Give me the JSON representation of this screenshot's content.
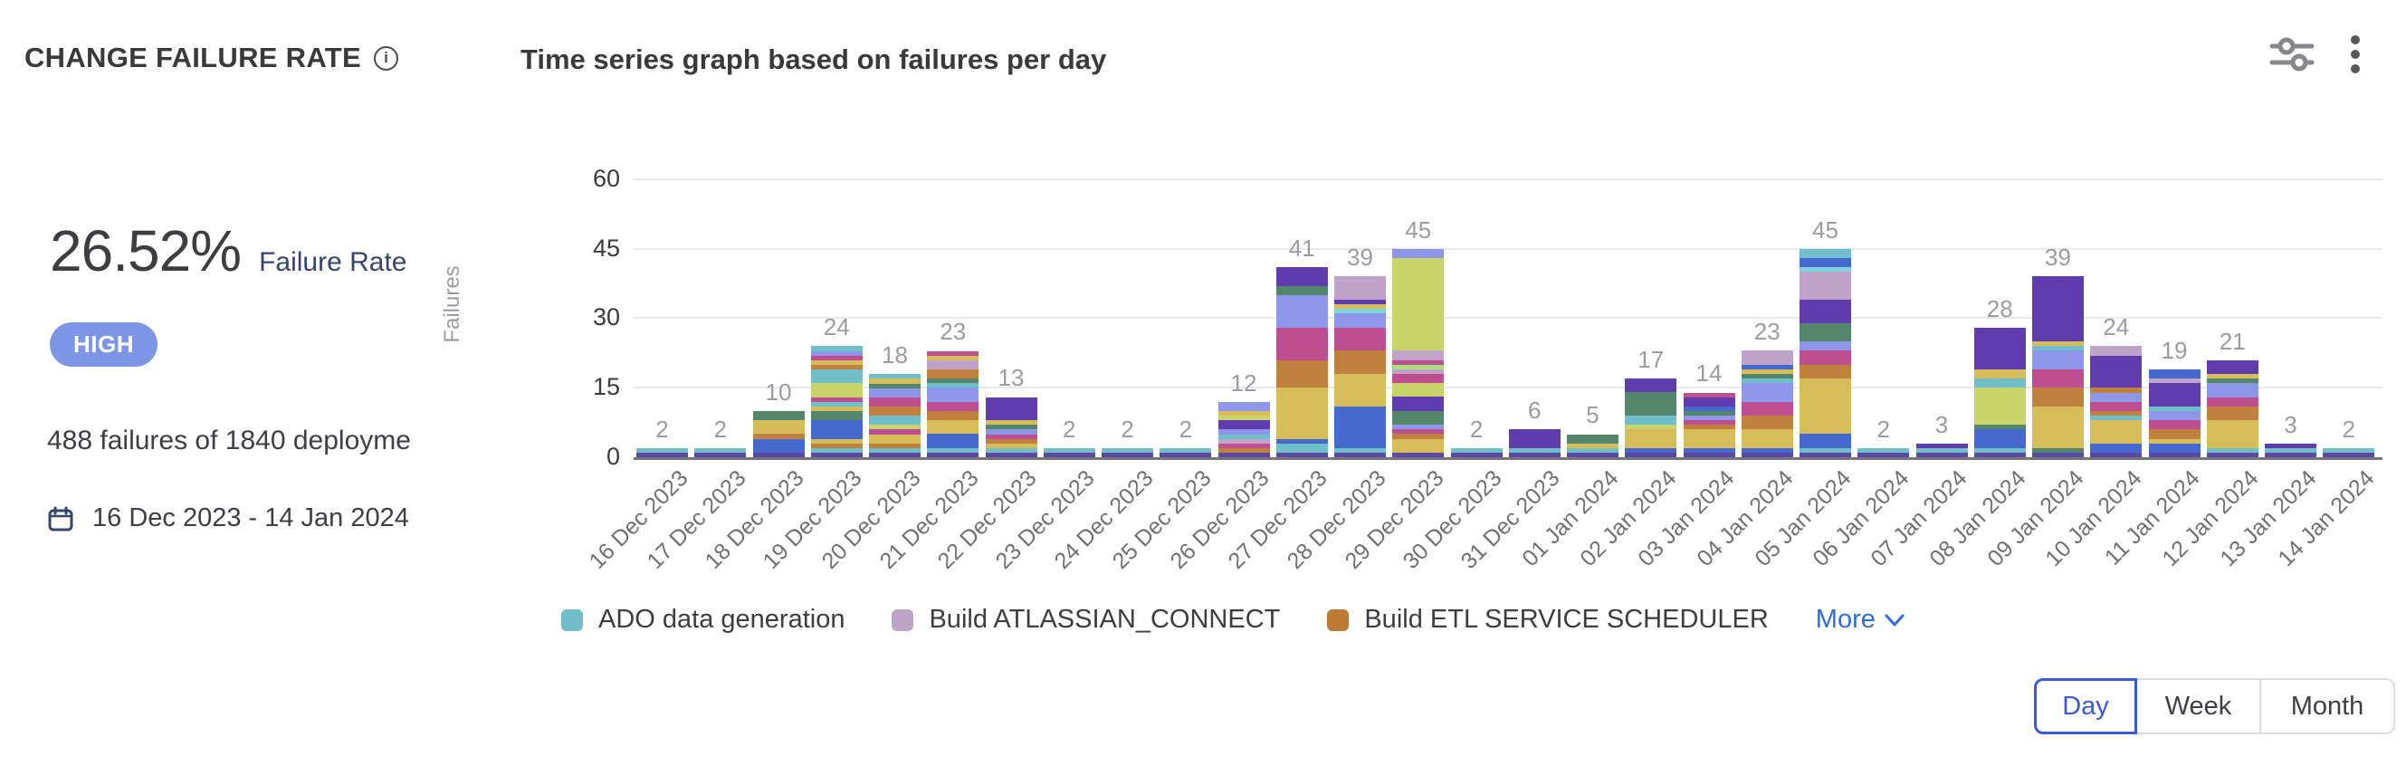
{
  "header": {
    "title": "CHANGE FAILURE RATE",
    "info_icon": "i"
  },
  "chart_header": {
    "title": "Time series graph based on failures per day"
  },
  "stats": {
    "failure_rate": "26.52%",
    "failure_rate_label": "Failure Rate",
    "severity": "HIGH",
    "summary": "488 failures of 1840 deployme",
    "date_range": "16 Dec 2023 - 14 Jan 2024"
  },
  "legend": {
    "items": [
      {
        "label": "ADO data generation",
        "color": "#6fbeca"
      },
      {
        "label": "Build ATLASSIAN_CONNECT",
        "color": "#c0a3c9"
      },
      {
        "label": "Build ETL SERVICE SCHEDULER",
        "color": "#bc7a35"
      }
    ],
    "more_label": "More"
  },
  "granularity": {
    "options": [
      "Day",
      "Week",
      "Month"
    ],
    "selected": "Day"
  },
  "chart_data": {
    "type": "bar",
    "stacked": true,
    "title": "Time series graph based on failures per day",
    "xlabel": "",
    "ylabel": "Failures",
    "ylim": [
      0,
      60
    ],
    "yticks": [
      0,
      15,
      30,
      45,
      60
    ],
    "grid": true,
    "legend_position": "bottom",
    "series_legend": [
      "ADO data generation",
      "Build ATLASSIAN_CONNECT",
      "Build ETL SERVICE SCHEDULER"
    ],
    "categories": [
      "16 Dec 2023",
      "17 Dec 2023",
      "18 Dec 2023",
      "19 Dec 2023",
      "20 Dec 2023",
      "21 Dec 2023",
      "22 Dec 2023",
      "23 Dec 2023",
      "24 Dec 2023",
      "25 Dec 2023",
      "26 Dec 2023",
      "27 Dec 2023",
      "28 Dec 2023",
      "29 Dec 2023",
      "30 Dec 2023",
      "31 Dec 2023",
      "01 Jan 2024",
      "02 Jan 2024",
      "03 Jan 2024",
      "04 Jan 2024",
      "05 Jan 2024",
      "06 Jan 2024",
      "07 Jan 2024",
      "08 Jan 2024",
      "09 Jan 2024",
      "10 Jan 2024",
      "11 Jan 2024",
      "12 Jan 2024",
      "13 Jan 2024",
      "14 Jan 2024"
    ],
    "totals": [
      2,
      2,
      10,
      24,
      18,
      23,
      13,
      2,
      2,
      2,
      12,
      41,
      39,
      45,
      2,
      6,
      5,
      17,
      14,
      23,
      45,
      2,
      3,
      28,
      39,
      24,
      19,
      21,
      3,
      2
    ],
    "palette": [
      "#5a48a2",
      "#6fbeca",
      "#4569cf",
      "#c0803e",
      "#d7bd59",
      "#bd4f90",
      "#53866a",
      "#8d96e9",
      "#c0a3c9",
      "#5f3dae",
      "#c9d46a",
      "#abde7e",
      "#7fd3dc"
    ],
    "segments": [
      [
        [
          0,
          1
        ],
        [
          1,
          1
        ]
      ],
      [
        [
          0,
          1
        ],
        [
          1,
          1
        ]
      ],
      [
        [
          0,
          1
        ],
        [
          2,
          3
        ],
        [
          3,
          1
        ],
        [
          4,
          3
        ],
        [
          6,
          2
        ]
      ],
      [
        [
          0,
          1
        ],
        [
          1,
          1
        ],
        [
          3,
          1
        ],
        [
          4,
          1
        ],
        [
          2,
          4
        ],
        [
          6,
          2
        ],
        [
          4,
          1
        ],
        [
          1,
          1
        ],
        [
          5,
          1
        ],
        [
          10,
          3
        ],
        [
          1,
          3
        ],
        [
          3,
          1
        ],
        [
          4,
          1
        ],
        [
          5,
          1
        ],
        [
          7,
          1
        ],
        [
          1,
          1
        ]
      ],
      [
        [
          0,
          1
        ],
        [
          1,
          1
        ],
        [
          3,
          1
        ],
        [
          4,
          2
        ],
        [
          5,
          1
        ],
        [
          10,
          1
        ],
        [
          1,
          2
        ],
        [
          3,
          2
        ],
        [
          5,
          2
        ],
        [
          7,
          2
        ],
        [
          6,
          1
        ],
        [
          4,
          1
        ],
        [
          1,
          1
        ]
      ],
      [
        [
          0,
          1
        ],
        [
          1,
          1
        ],
        [
          2,
          3
        ],
        [
          4,
          3
        ],
        [
          3,
          2
        ],
        [
          5,
          2
        ],
        [
          7,
          3
        ],
        [
          1,
          1
        ],
        [
          6,
          1
        ],
        [
          3,
          2
        ],
        [
          8,
          2
        ],
        [
          4,
          1
        ],
        [
          5,
          1
        ]
      ],
      [
        [
          0,
          1
        ],
        [
          1,
          1
        ],
        [
          4,
          1
        ],
        [
          3,
          1
        ],
        [
          5,
          1
        ],
        [
          7,
          1
        ],
        [
          6,
          1
        ],
        [
          4,
          1
        ],
        [
          9,
          5
        ]
      ],
      [
        [
          0,
          1
        ],
        [
          1,
          1
        ]
      ],
      [
        [
          0,
          1
        ],
        [
          1,
          1
        ]
      ],
      [
        [
          0,
          1
        ],
        [
          1,
          1
        ]
      ],
      [
        [
          0,
          1
        ],
        [
          3,
          1
        ],
        [
          5,
          1
        ],
        [
          8,
          1
        ],
        [
          1,
          1
        ],
        [
          7,
          1
        ],
        [
          9,
          2
        ],
        [
          10,
          1
        ],
        [
          4,
          1
        ],
        [
          7,
          2
        ]
      ],
      [
        [
          0,
          1
        ],
        [
          1,
          2
        ],
        [
          2,
          1
        ],
        [
          4,
          11
        ],
        [
          3,
          6
        ],
        [
          5,
          7
        ],
        [
          7,
          7
        ],
        [
          6,
          2
        ],
        [
          9,
          4
        ]
      ],
      [
        [
          0,
          1
        ],
        [
          1,
          1
        ],
        [
          2,
          9
        ],
        [
          4,
          7
        ],
        [
          3,
          5
        ],
        [
          5,
          5
        ],
        [
          7,
          3
        ],
        [
          12,
          1
        ],
        [
          4,
          1
        ],
        [
          9,
          1
        ],
        [
          8,
          5
        ]
      ],
      [
        [
          0,
          1
        ],
        [
          4,
          3
        ],
        [
          3,
          1
        ],
        [
          5,
          1
        ],
        [
          7,
          1
        ],
        [
          6,
          3
        ],
        [
          9,
          3
        ],
        [
          10,
          3
        ],
        [
          5,
          2
        ],
        [
          8,
          1
        ],
        [
          11,
          1
        ],
        [
          5,
          1
        ],
        [
          8,
          2
        ],
        [
          10,
          20
        ],
        [
          7,
          2
        ]
      ],
      [
        [
          0,
          1
        ],
        [
          1,
          1
        ]
      ],
      [
        [
          0,
          1
        ],
        [
          1,
          1
        ],
        [
          9,
          4
        ]
      ],
      [
        [
          0,
          1
        ],
        [
          1,
          1
        ],
        [
          4,
          1
        ],
        [
          6,
          2
        ]
      ],
      [
        [
          0,
          1
        ],
        [
          2,
          1
        ],
        [
          4,
          4
        ],
        [
          10,
          1
        ],
        [
          1,
          2
        ],
        [
          6,
          5
        ],
        [
          9,
          3
        ]
      ],
      [
        [
          0,
          1
        ],
        [
          2,
          1
        ],
        [
          4,
          4
        ],
        [
          3,
          1
        ],
        [
          5,
          1
        ],
        [
          7,
          1
        ],
        [
          6,
          1
        ],
        [
          2,
          1
        ],
        [
          9,
          2
        ],
        [
          5,
          1
        ]
      ],
      [
        [
          0,
          1
        ],
        [
          2,
          1
        ],
        [
          4,
          4
        ],
        [
          3,
          3
        ],
        [
          5,
          3
        ],
        [
          7,
          4
        ],
        [
          1,
          1
        ],
        [
          6,
          1
        ],
        [
          4,
          1
        ],
        [
          2,
          1
        ],
        [
          8,
          3
        ]
      ],
      [
        [
          0,
          1
        ],
        [
          1,
          1
        ],
        [
          2,
          3
        ],
        [
          4,
          12
        ],
        [
          3,
          3
        ],
        [
          5,
          3
        ],
        [
          7,
          2
        ],
        [
          6,
          4
        ],
        [
          9,
          5
        ],
        [
          8,
          6
        ],
        [
          12,
          1
        ],
        [
          2,
          2
        ],
        [
          1,
          2
        ]
      ],
      [
        [
          0,
          1
        ],
        [
          1,
          1
        ]
      ],
      [
        [
          0,
          1
        ],
        [
          1,
          1
        ],
        [
          9,
          1
        ]
      ],
      [
        [
          0,
          1
        ],
        [
          1,
          1
        ],
        [
          2,
          4
        ],
        [
          6,
          1
        ],
        [
          10,
          8
        ],
        [
          1,
          2
        ],
        [
          4,
          2
        ],
        [
          9,
          9
        ]
      ],
      [
        [
          0,
          1
        ],
        [
          6,
          1
        ],
        [
          4,
          9
        ],
        [
          3,
          4
        ],
        [
          5,
          4
        ],
        [
          7,
          4
        ],
        [
          1,
          1
        ],
        [
          4,
          1
        ],
        [
          9,
          14
        ]
      ],
      [
        [
          0,
          1
        ],
        [
          2,
          2
        ],
        [
          4,
          5
        ],
        [
          1,
          1
        ],
        [
          3,
          1
        ],
        [
          5,
          2
        ],
        [
          7,
          2
        ],
        [
          3,
          1
        ],
        [
          9,
          7
        ],
        [
          8,
          2
        ]
      ],
      [
        [
          0,
          1
        ],
        [
          2,
          2
        ],
        [
          4,
          1
        ],
        [
          3,
          2
        ],
        [
          5,
          2
        ],
        [
          7,
          2
        ],
        [
          1,
          1
        ],
        [
          9,
          5
        ],
        [
          8,
          1
        ],
        [
          2,
          2
        ]
      ],
      [
        [
          0,
          1
        ],
        [
          1,
          1
        ],
        [
          4,
          6
        ],
        [
          3,
          3
        ],
        [
          5,
          2
        ],
        [
          7,
          3
        ],
        [
          6,
          1
        ],
        [
          4,
          1
        ],
        [
          9,
          3
        ]
      ],
      [
        [
          0,
          1
        ],
        [
          1,
          1
        ],
        [
          9,
          1
        ]
      ],
      [
        [
          0,
          1
        ],
        [
          1,
          1
        ]
      ]
    ]
  }
}
